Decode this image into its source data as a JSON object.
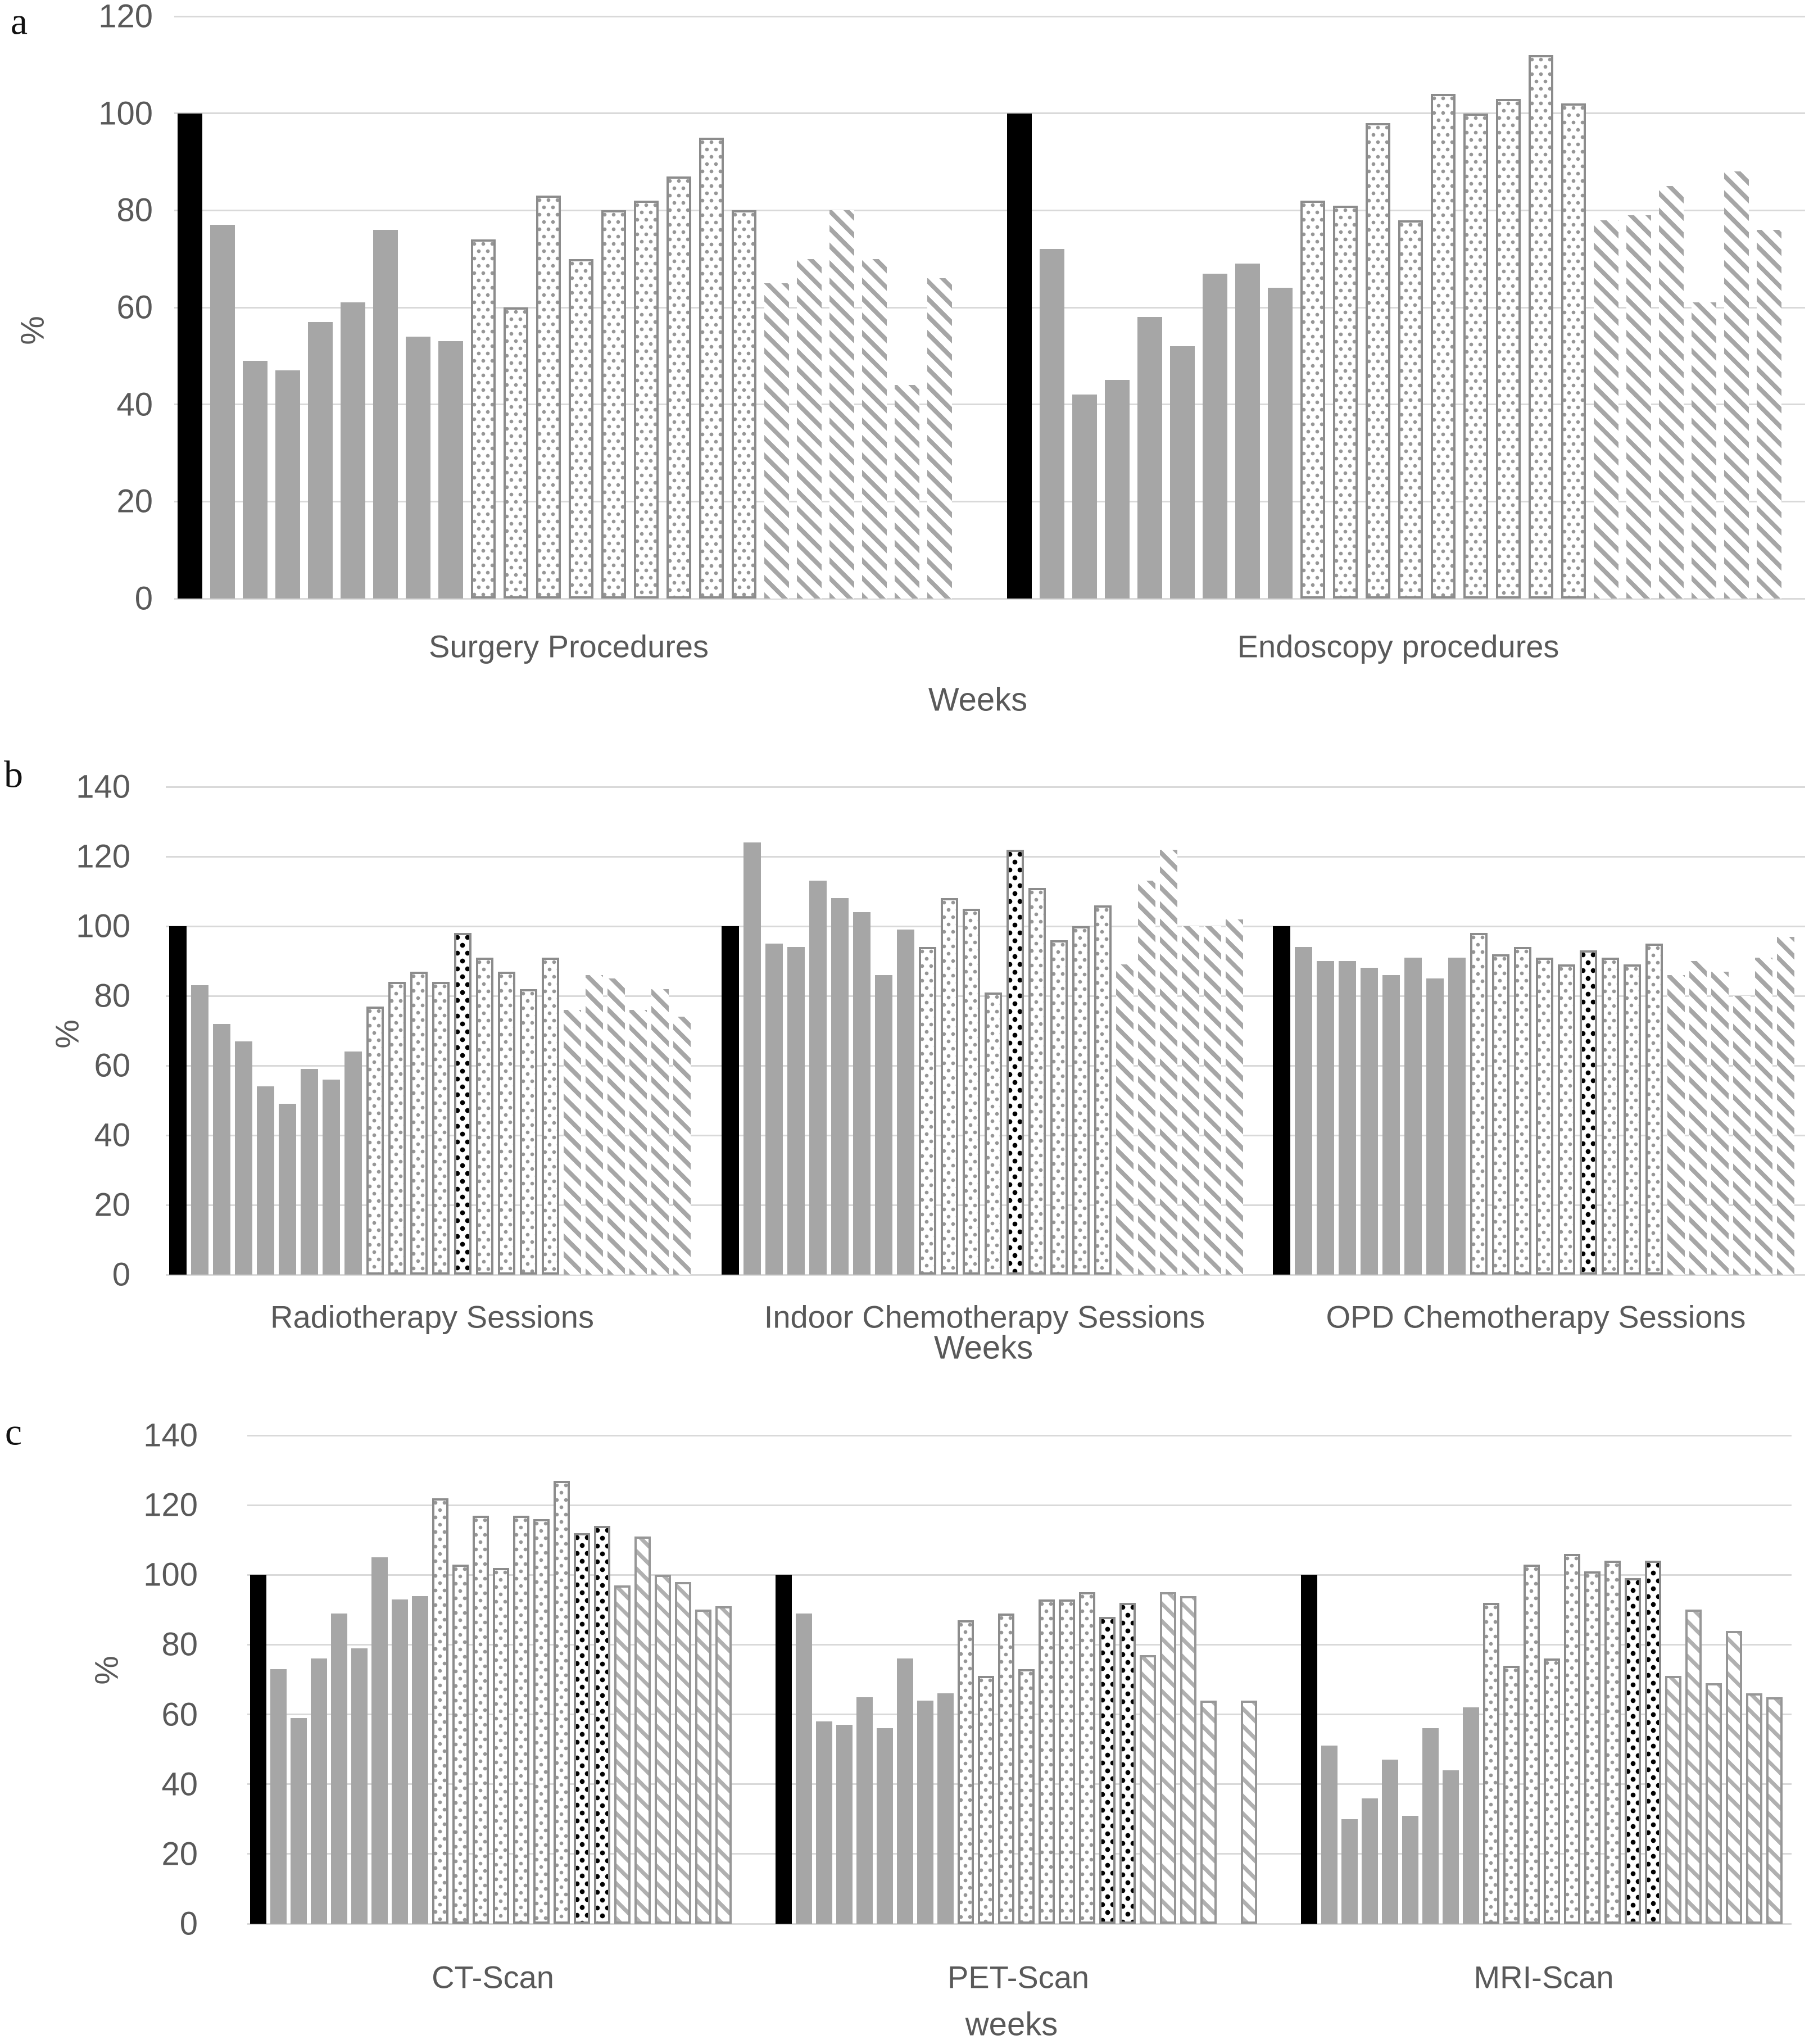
{
  "figure_title": "",
  "bar_pattern_legend": {
    "k": "baseline-black-bar",
    "g": "solid-gray-bar",
    "d": "dotted-outline-bar",
    "D": "black-dotted-highlight-bar",
    "s": "diagonal-striped-bar",
    "x": "no-bar-gap"
  },
  "colors": {
    "baseline_black": "#000000",
    "solid_gray": "#a6a6a6",
    "bar_outline_gray": "#8c8c8c",
    "gridline": "#d9d9d9",
    "text_gray": "#595959"
  },
  "chart_data": [
    {
      "type": "bar",
      "panel": "a",
      "panel_label": "a",
      "ylabel": "%",
      "xlabel": "Weeks",
      "ylim": [
        0,
        120
      ],
      "yticks": [
        120,
        100,
        80,
        60,
        40,
        20,
        0
      ],
      "grid": true,
      "legend_position": "none",
      "groups": [
        {
          "label": "Surgery Procedures",
          "bars": [
            [
              100,
              "k"
            ],
            [
              77,
              "g"
            ],
            [
              49,
              "g"
            ],
            [
              47,
              "g"
            ],
            [
              57,
              "g"
            ],
            [
              61,
              "g"
            ],
            [
              76,
              "g"
            ],
            [
              54,
              "g"
            ],
            [
              53,
              "g"
            ],
            [
              74,
              "d"
            ],
            [
              60,
              "d"
            ],
            [
              83,
              "d"
            ],
            [
              70,
              "d"
            ],
            [
              80,
              "d"
            ],
            [
              82,
              "d"
            ],
            [
              87,
              "d"
            ],
            [
              95,
              "d"
            ],
            [
              80,
              "d"
            ],
            [
              65,
              "s"
            ],
            [
              70,
              "s"
            ],
            [
              80,
              "s"
            ],
            [
              70,
              "s"
            ],
            [
              44,
              "s"
            ],
            [
              66,
              "s"
            ]
          ]
        },
        {
          "label": "Endoscopy procedures",
          "bars": [
            [
              100,
              "k"
            ],
            [
              72,
              "g"
            ],
            [
              42,
              "g"
            ],
            [
              45,
              "g"
            ],
            [
              58,
              "g"
            ],
            [
              52,
              "g"
            ],
            [
              67,
              "g"
            ],
            [
              69,
              "g"
            ],
            [
              64,
              "g"
            ],
            [
              82,
              "d"
            ],
            [
              81,
              "d"
            ],
            [
              98,
              "d"
            ],
            [
              78,
              "d"
            ],
            [
              104,
              "d"
            ],
            [
              100,
              "d"
            ],
            [
              103,
              "d"
            ],
            [
              112,
              "d"
            ],
            [
              102,
              "d"
            ],
            [
              78,
              "s"
            ],
            [
              79,
              "s"
            ],
            [
              85,
              "s"
            ],
            [
              61,
              "s"
            ],
            [
              88,
              "s"
            ],
            [
              76,
              "s"
            ]
          ]
        }
      ]
    },
    {
      "type": "bar",
      "panel": "b",
      "panel_label": "b",
      "ylabel": "%",
      "xlabel": "Weeks",
      "ylim": [
        0,
        140
      ],
      "yticks": [
        140,
        120,
        100,
        80,
        60,
        40,
        20,
        0
      ],
      "grid": true,
      "legend_position": "none",
      "groups": [
        {
          "label": "Radiotherapy Sessions",
          "bars": [
            [
              100,
              "k"
            ],
            [
              83,
              "g"
            ],
            [
              72,
              "g"
            ],
            [
              67,
              "g"
            ],
            [
              54,
              "g"
            ],
            [
              49,
              "g"
            ],
            [
              59,
              "g"
            ],
            [
              56,
              "g"
            ],
            [
              64,
              "g"
            ],
            [
              77,
              "d"
            ],
            [
              84,
              "d"
            ],
            [
              87,
              "d"
            ],
            [
              84,
              "d"
            ],
            [
              98,
              "D"
            ],
            [
              91,
              "d"
            ],
            [
              87,
              "d"
            ],
            [
              82,
              "d"
            ],
            [
              91,
              "d"
            ],
            [
              76,
              "s"
            ],
            [
              86,
              "s"
            ],
            [
              85,
              "s"
            ],
            [
              76,
              "s"
            ],
            [
              82,
              "s"
            ],
            [
              74,
              "s"
            ]
          ]
        },
        {
          "label": "Indoor Chemotherapy Sessions",
          "bars": [
            [
              100,
              "k"
            ],
            [
              124,
              "g"
            ],
            [
              95,
              "g"
            ],
            [
              94,
              "g"
            ],
            [
              113,
              "g"
            ],
            [
              108,
              "g"
            ],
            [
              104,
              "g"
            ],
            [
              86,
              "g"
            ],
            [
              99,
              "g"
            ],
            [
              94,
              "d"
            ],
            [
              108,
              "d"
            ],
            [
              105,
              "d"
            ],
            [
              81,
              "d"
            ],
            [
              122,
              "D"
            ],
            [
              111,
              "d"
            ],
            [
              96,
              "d"
            ],
            [
              100,
              "d"
            ],
            [
              106,
              "d"
            ],
            [
              89,
              "s"
            ],
            [
              113,
              "s"
            ],
            [
              122,
              "s"
            ],
            [
              100,
              "s"
            ],
            [
              100,
              "s"
            ],
            [
              102,
              "s"
            ]
          ]
        },
        {
          "label": "OPD Chemotherapy Sessions",
          "bars": [
            [
              100,
              "k"
            ],
            [
              94,
              "g"
            ],
            [
              90,
              "g"
            ],
            [
              90,
              "g"
            ],
            [
              88,
              "g"
            ],
            [
              86,
              "g"
            ],
            [
              91,
              "g"
            ],
            [
              85,
              "g"
            ],
            [
              91,
              "g"
            ],
            [
              98,
              "d"
            ],
            [
              92,
              "d"
            ],
            [
              94,
              "d"
            ],
            [
              91,
              "d"
            ],
            [
              89,
              "d"
            ],
            [
              93,
              "D"
            ],
            [
              91,
              "d"
            ],
            [
              89,
              "d"
            ],
            [
              95,
              "d"
            ],
            [
              86,
              "s"
            ],
            [
              90,
              "s"
            ],
            [
              87,
              "s"
            ],
            [
              80,
              "s"
            ],
            [
              91,
              "s"
            ],
            [
              97,
              "s"
            ]
          ]
        }
      ]
    },
    {
      "type": "bar",
      "panel": "c",
      "panel_label": "c",
      "ylabel": "%",
      "xlabel": "weeks",
      "ylim": [
        0,
        140
      ],
      "yticks": [
        140,
        120,
        100,
        80,
        60,
        40,
        20,
        0
      ],
      "grid": true,
      "legend_position": "none",
      "groups": [
        {
          "label": "CT-Scan",
          "bars": [
            [
              100,
              "k"
            ],
            [
              73,
              "g"
            ],
            [
              59,
              "g"
            ],
            [
              76,
              "g"
            ],
            [
              89,
              "g"
            ],
            [
              79,
              "g"
            ],
            [
              105,
              "g"
            ],
            [
              93,
              "g"
            ],
            [
              94,
              "g"
            ],
            [
              122,
              "d"
            ],
            [
              103,
              "d"
            ],
            [
              117,
              "d"
            ],
            [
              102,
              "d"
            ],
            [
              117,
              "d"
            ],
            [
              116,
              "d"
            ],
            [
              127,
              "d"
            ],
            [
              112,
              "D"
            ],
            [
              114,
              "D"
            ],
            [
              97,
              "s"
            ],
            [
              111,
              "s"
            ],
            [
              100,
              "s"
            ],
            [
              98,
              "s"
            ],
            [
              90,
              "s"
            ],
            [
              91,
              "s"
            ]
          ]
        },
        {
          "label": "PET-Scan",
          "bars": [
            [
              100,
              "k"
            ],
            [
              89,
              "g"
            ],
            [
              58,
              "g"
            ],
            [
              57,
              "g"
            ],
            [
              65,
              "g"
            ],
            [
              56,
              "g"
            ],
            [
              76,
              "g"
            ],
            [
              64,
              "g"
            ],
            [
              66,
              "g"
            ],
            [
              87,
              "d"
            ],
            [
              71,
              "d"
            ],
            [
              89,
              "d"
            ],
            [
              73,
              "d"
            ],
            [
              93,
              "d"
            ],
            [
              93,
              "d"
            ],
            [
              95,
              "d"
            ],
            [
              88,
              "D"
            ],
            [
              92,
              "D"
            ],
            [
              77,
              "s"
            ],
            [
              95,
              "s"
            ],
            [
              94,
              "s"
            ],
            [
              64,
              "s"
            ],
            [
              null,
              "x"
            ],
            [
              64,
              "s"
            ]
          ]
        },
        {
          "label": "MRI-Scan",
          "bars": [
            [
              100,
              "k"
            ],
            [
              51,
              "g"
            ],
            [
              30,
              "g"
            ],
            [
              36,
              "g"
            ],
            [
              47,
              "g"
            ],
            [
              31,
              "g"
            ],
            [
              56,
              "g"
            ],
            [
              44,
              "g"
            ],
            [
              62,
              "g"
            ],
            [
              92,
              "d"
            ],
            [
              74,
              "d"
            ],
            [
              103,
              "d"
            ],
            [
              76,
              "d"
            ],
            [
              106,
              "d"
            ],
            [
              101,
              "d"
            ],
            [
              104,
              "d"
            ],
            [
              99,
              "D"
            ],
            [
              104,
              "D"
            ],
            [
              71,
              "s"
            ],
            [
              90,
              "s"
            ],
            [
              69,
              "s"
            ],
            [
              84,
              "s"
            ],
            [
              66,
              "s"
            ],
            [
              65,
              "s"
            ]
          ]
        }
      ]
    }
  ]
}
